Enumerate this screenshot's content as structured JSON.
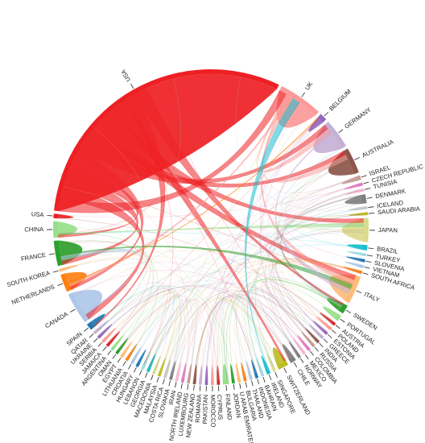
{
  "chart_data": {
    "type": "chord",
    "title": "",
    "segments": [
      {
        "label": "USA",
        "share": 40.0,
        "color": "#ee2024"
      },
      {
        "label": "UK",
        "share": 6.0,
        "color": "#fb9a99"
      },
      {
        "label": "BELGIUM",
        "share": 1.0,
        "color": "#9467bd"
      },
      {
        "label": "GERMANY",
        "share": 4.0,
        "color": "#c5b0d5"
      },
      {
        "label": "AUSTRALIA",
        "share": 3.5,
        "color": "#8c564b"
      },
      {
        "label": "ISRAEL",
        "share": 0.6,
        "color": "#c49c94"
      },
      {
        "label": "CZECH REPUBLIC",
        "share": 0.4,
        "color": "#e377c2"
      },
      {
        "label": "TUNISIA",
        "share": 0.4,
        "color": "#f7b6d2"
      },
      {
        "label": "DENMARK",
        "share": 1.2,
        "color": "#7f7f7f"
      },
      {
        "label": "ICELAND",
        "share": 0.4,
        "color": "#c7c7c7"
      },
      {
        "label": "SAUDI ARABIA",
        "share": 0.4,
        "color": "#bcbd22"
      },
      {
        "label": "JAPAN",
        "share": 3.2,
        "color": "#dbdb8d"
      },
      {
        "label": "BRAZIL",
        "share": 0.7,
        "color": "#17becf"
      },
      {
        "label": "TURKEY",
        "share": 0.4,
        "color": "#9edae5"
      },
      {
        "label": "SLOVENIA",
        "share": 0.4,
        "color": "#1f77b4"
      },
      {
        "label": "VIETNAM",
        "share": 0.4,
        "color": "#aec7e8"
      },
      {
        "label": "SOUTH AFRICA",
        "share": 0.4,
        "color": "#ff7f0e"
      },
      {
        "label": "ITALY",
        "share": 3.8,
        "color": "#ffbb78"
      },
      {
        "label": "SWEDEN",
        "share": 1.2,
        "color": "#2ca02c"
      },
      {
        "label": "PORTUGAL",
        "share": 0.8,
        "color": "#98df8a"
      },
      {
        "label": "AUSTRIA",
        "share": 0.4,
        "color": "#d62728"
      },
      {
        "label": "POLAND",
        "share": 0.4,
        "color": "#ff9896"
      },
      {
        "label": "ESTONIA",
        "share": 0.4,
        "color": "#9467bd"
      },
      {
        "label": "GREECE",
        "share": 0.4,
        "color": "#c5b0d5"
      },
      {
        "label": "INDIA",
        "share": 0.4,
        "color": "#8c564b"
      },
      {
        "label": "RUSSIA",
        "share": 0.4,
        "color": "#c49c94"
      },
      {
        "label": "COLOMBIA",
        "share": 0.4,
        "color": "#e377c2"
      },
      {
        "label": "MEXICO",
        "share": 0.4,
        "color": "#f7b6d2"
      },
      {
        "label": "NORWAY",
        "share": 0.4,
        "color": "#7f7f7f"
      },
      {
        "label": "CHILE",
        "share": 0.8,
        "color": "#7f7f7f"
      },
      {
        "label": "SWITZERLAND",
        "share": 1.4,
        "color": "#bcbd22"
      },
      {
        "label": "SINGAPORE",
        "share": 0.4,
        "color": "#dbdb8d"
      },
      {
        "label": "IRELAND",
        "share": 0.5,
        "color": "#17becf"
      },
      {
        "label": "BAHRAIN",
        "share": 0.4,
        "color": "#9edae5"
      },
      {
        "label": "INDONESIA",
        "share": 0.4,
        "color": "#1f77b4"
      },
      {
        "label": "THAILAND",
        "share": 0.4,
        "color": "#aec7e8"
      },
      {
        "label": "BULGARIA",
        "share": 0.4,
        "color": "#ff7f0e"
      },
      {
        "label": "U ARAB EMIRATES",
        "share": 0.4,
        "color": "#ffbb78"
      },
      {
        "label": "JORDAN",
        "share": 0.4,
        "color": "#2ca02c"
      },
      {
        "label": "FINLAND",
        "share": 0.8,
        "color": "#98df8a"
      },
      {
        "label": "CYPRUS",
        "share": 0.4,
        "color": "#d62728"
      },
      {
        "label": "MOROCCO",
        "share": 0.4,
        "color": "#ff9896"
      },
      {
        "label": "PAKISTAN",
        "share": 0.4,
        "color": "#9467bd"
      },
      {
        "label": "ROMANIA",
        "share": 0.4,
        "color": "#c5b0d5"
      },
      {
        "label": "NEW ZEALAND",
        "share": 0.4,
        "color": "#8c564b"
      },
      {
        "label": "LUXEMBOURG",
        "share": 0.4,
        "color": "#c49c94"
      },
      {
        "label": "NORTH IRELAND",
        "share": 0.4,
        "color": "#e377c2"
      },
      {
        "label": "IRAN",
        "share": 0.4,
        "color": "#f7b6d2"
      },
      {
        "label": "SLOVAKIA",
        "share": 0.4,
        "color": "#7f7f7f"
      },
      {
        "label": "COSTA RICA",
        "share": 0.4,
        "color": "#c7c7c7"
      },
      {
        "label": "MALAYSIA",
        "share": 0.4,
        "color": "#bcbd22"
      },
      {
        "label": "MACEDONIA",
        "share": 0.4,
        "color": "#dbdb8d"
      },
      {
        "label": "GEORGIA",
        "share": 0.4,
        "color": "#17becf"
      },
      {
        "label": "LEBANON",
        "share": 0.4,
        "color": "#9edae5"
      },
      {
        "label": "HUNGARY",
        "share": 0.4,
        "color": "#1f77b4"
      },
      {
        "label": "CROATIA",
        "share": 0.4,
        "color": "#aec7e8"
      },
      {
        "label": "LITHUANIA",
        "share": 0.4,
        "color": "#ff7f0e"
      },
      {
        "label": "EGYPT",
        "share": 0.4,
        "color": "#ffbb78"
      },
      {
        "label": "OMAN",
        "share": 0.4,
        "color": "#2ca02c"
      },
      {
        "label": "ARGENTINA",
        "share": 0.4,
        "color": "#98df8a"
      },
      {
        "label": "JAMAICA",
        "share": 0.4,
        "color": "#d62728"
      },
      {
        "label": "SERBIA",
        "share": 0.4,
        "color": "#ff9896"
      },
      {
        "label": "UKRAINE",
        "share": 0.4,
        "color": "#9467bd"
      },
      {
        "label": "QATAR",
        "share": 0.4,
        "color": "#c5b0d5"
      },
      {
        "label": "SPAIN",
        "share": 0.9,
        "color": "#1f77b4"
      },
      {
        "label": "CANADA",
        "share": 4.3,
        "color": "#aec7e8"
      },
      {
        "label": "NETHERLANDS",
        "share": 2.4,
        "color": "#ff7f0e"
      },
      {
        "label": "SOUTH KOREA",
        "share": 0.4,
        "color": "#ffbb78"
      },
      {
        "label": "FRANCE",
        "share": 3.4,
        "color": "#2ca02c"
      },
      {
        "label": "CHINA",
        "share": 2.2,
        "color": "#98df8a"
      },
      {
        "label": "USA",
        "share": 0.6,
        "color": "#ee2024"
      }
    ],
    "major_links": [
      {
        "source": "USA",
        "target": "UK"
      },
      {
        "source": "USA",
        "target": "CANADA"
      },
      {
        "source": "USA",
        "target": "FRANCE"
      },
      {
        "source": "USA",
        "target": "CHINA"
      },
      {
        "source": "USA",
        "target": "NETHERLANDS"
      },
      {
        "source": "USA",
        "target": "GERMANY"
      },
      {
        "source": "USA",
        "target": "AUSTRALIA"
      },
      {
        "source": "USA",
        "target": "ITALY"
      },
      {
        "source": "USA",
        "target": "JAPAN"
      },
      {
        "source": "USA",
        "target": "SWITZERLAND"
      },
      {
        "source": "USA",
        "target": "SPAIN"
      },
      {
        "source": "USA",
        "target": "SWEDEN"
      },
      {
        "source": "UK",
        "target": "GERMANY"
      },
      {
        "source": "UK",
        "target": "ITALY"
      },
      {
        "source": "UK",
        "target": "NETHERLANDS"
      },
      {
        "source": "UK",
        "target": "AUSTRALIA"
      },
      {
        "source": "CANADA",
        "target": "FRANCE"
      },
      {
        "source": "FRANCE",
        "target": "ITALY"
      },
      {
        "source": "GERMANY",
        "target": "ITALY"
      },
      {
        "source": "NETHERLANDS",
        "target": "BELGIUM"
      },
      {
        "source": "CHINA",
        "target": "JAPAN"
      },
      {
        "source": "DENMARK",
        "target": "SWEDEN"
      },
      {
        "source": "FINLAND",
        "target": "SWEDEN"
      },
      {
        "source": "IRELAND",
        "target": "UK"
      }
    ]
  }
}
